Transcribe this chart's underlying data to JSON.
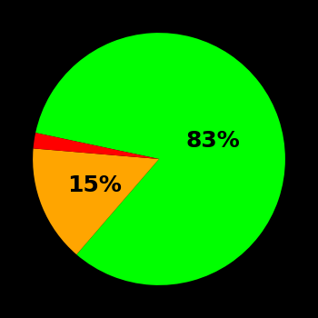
{
  "slices": [
    83,
    15,
    2
  ],
  "colors": [
    "#00ff00",
    "#ffa500",
    "#ff0000"
  ],
  "labels": [
    "83%",
    "15%",
    ""
  ],
  "background_color": "#000000",
  "startangle": 168,
  "label_fontsize": 18,
  "label_fontweight": "bold",
  "label_offsets": [
    0.45,
    0.55,
    0.0
  ]
}
